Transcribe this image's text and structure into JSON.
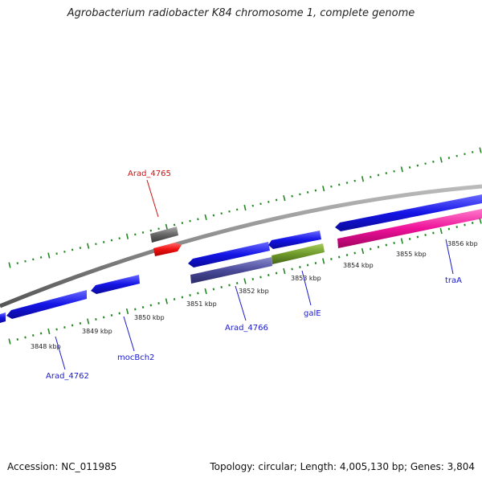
{
  "title": "Agrobacterium radiobacter K84 chromosome 1, complete genome",
  "footer": {
    "accession": "Accession: NC_011985",
    "summary": "Topology: circular; Length: 4,005,130 bp; Genes: 3,804"
  },
  "ticks": [
    "3848 kbp",
    "3849 kbp",
    "3850 kbp",
    "3851 kbp",
    "3852 kbp",
    "3853 kbp",
    "3854 kbp",
    "3855 kbp",
    "3856 kbp"
  ],
  "gene_labels": {
    "arad_4765": "Arad_4765",
    "arad_4762": "Arad_4762",
    "mocbch2": "mocBch2",
    "arad_4766": "Arad_4766",
    "gale": "galE",
    "traa": "traA"
  },
  "colors": {
    "backbone": "#888888",
    "tick": "#228822",
    "gene_blue": "#1a1aee",
    "gene_gray": "#666666",
    "gene_red": "#ee1111",
    "gene_purple": "#4a4a99",
    "gene_olive": "#6f9a2a",
    "gene_pink": "#ee1199",
    "label_blue": "#1a1acc",
    "label_red": "#cc1111"
  }
}
